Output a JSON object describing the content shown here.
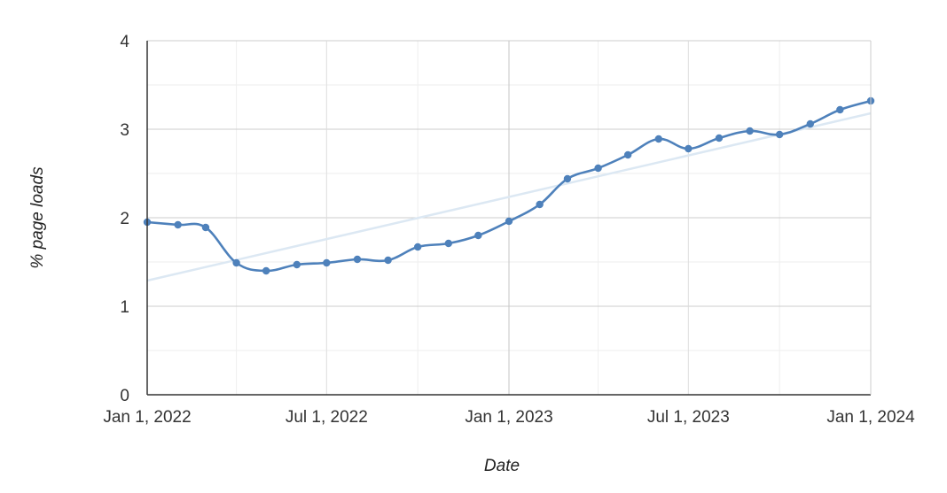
{
  "chart_data": {
    "type": "line",
    "title": "",
    "xlabel": "Date",
    "ylabel": "% page loads",
    "x_ticks": [
      "Jan 1, 2022",
      "Jul 1, 2022",
      "Jan 1, 2023",
      "Jul 1, 2023",
      "Jan 1, 2024"
    ],
    "y_ticks": [
      "0",
      "1",
      "2",
      "3",
      "4"
    ],
    "ylim": [
      0,
      4
    ],
    "xlim": [
      "2022-01-01",
      "2024-01-01"
    ],
    "grid": true,
    "legend": "none",
    "series": [
      {
        "color": "#4e81bb",
        "values": [
          {
            "x": "2022-01-01",
            "y": 1.95
          },
          {
            "x": "2022-02-01",
            "y": 1.92
          },
          {
            "x": "2022-03-01",
            "y": 1.89
          },
          {
            "x": "2022-04-01",
            "y": 1.49
          },
          {
            "x": "2022-05-01",
            "y": 1.4
          },
          {
            "x": "2022-06-01",
            "y": 1.47
          },
          {
            "x": "2022-07-01",
            "y": 1.49
          },
          {
            "x": "2022-08-01",
            "y": 1.53
          },
          {
            "x": "2022-09-01",
            "y": 1.52
          },
          {
            "x": "2022-10-01",
            "y": 1.67
          },
          {
            "x": "2022-11-01",
            "y": 1.71
          },
          {
            "x": "2022-12-01",
            "y": 1.8
          },
          {
            "x": "2023-01-01",
            "y": 1.96
          },
          {
            "x": "2023-02-01",
            "y": 2.15
          },
          {
            "x": "2023-03-01",
            "y": 2.44
          },
          {
            "x": "2023-04-01",
            "y": 2.56
          },
          {
            "x": "2023-05-01",
            "y": 2.71
          },
          {
            "x": "2023-06-01",
            "y": 2.89
          },
          {
            "x": "2023-07-01",
            "y": 2.78
          },
          {
            "x": "2023-08-01",
            "y": 2.9
          },
          {
            "x": "2023-09-01",
            "y": 2.98
          },
          {
            "x": "2023-10-01",
            "y": 2.94
          },
          {
            "x": "2023-11-01",
            "y": 3.06
          },
          {
            "x": "2023-12-01",
            "y": 3.22
          },
          {
            "x": "2024-01-01",
            "y": 3.32
          }
        ]
      }
    ],
    "trendline": {
      "color": "#dce8f3",
      "start": {
        "x": "2022-01-01",
        "y": 1.29
      },
      "end": {
        "x": "2024-01-01",
        "y": 3.18
      }
    }
  }
}
